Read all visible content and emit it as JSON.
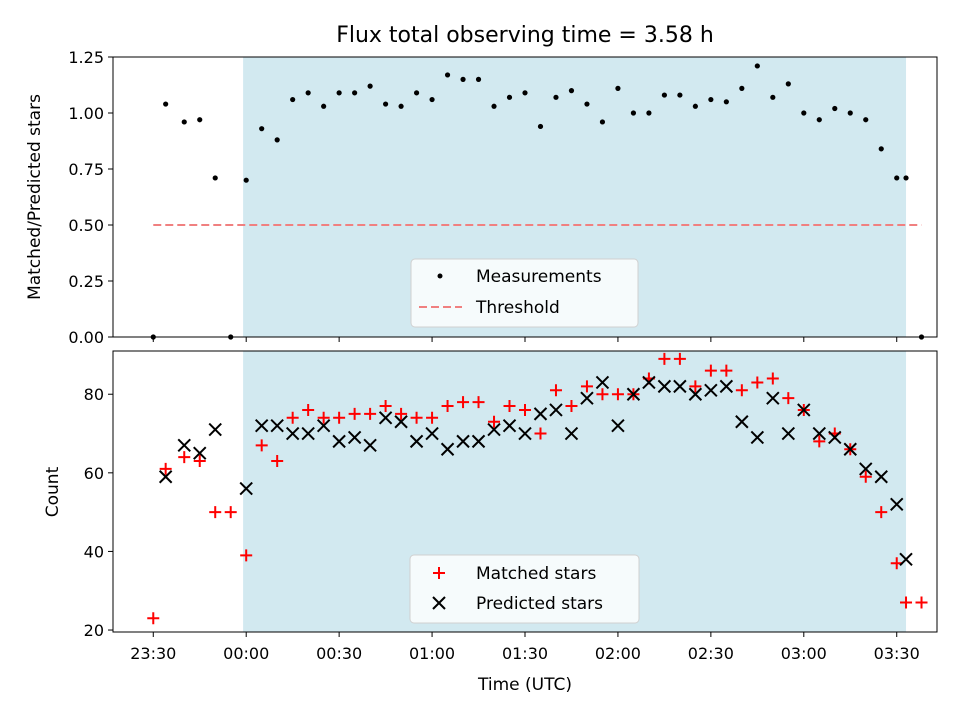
{
  "chart_data": [
    {
      "type": "scatter",
      "title": "Flux total observing time = 3.58 h",
      "xlabel": "",
      "ylabel": "Matched/Predicted stars",
      "xlim": [
        "23:17",
        "03:43"
      ],
      "ylim": [
        0,
        1.25
      ],
      "yticks": [
        0.0,
        0.25,
        0.5,
        0.75,
        1.0,
        1.25
      ],
      "ytick_labels": [
        "0.00",
        "0.25",
        "0.50",
        "0.75",
        "1.00",
        "1.25"
      ],
      "observing_window": {
        "start": "23:59",
        "end": "03:33",
        "color": "#d2e9f0"
      },
      "legend": {
        "placement": "bottom-center"
      },
      "threshold": {
        "name": "Threshold",
        "value": 0.5,
        "x_start": "23:30",
        "x_end": "03:38",
        "color": "#f08080",
        "style": "dashed"
      },
      "series": [
        {
          "name": "Measurements",
          "color": "#000000",
          "marker": "dot",
          "x": [
            "23:30",
            "23:34",
            "23:40",
            "23:45",
            "23:50",
            "23:55",
            "24:00",
            "24:05",
            "24:10",
            "24:15",
            "24:20",
            "24:25",
            "24:30",
            "24:35",
            "24:40",
            "24:45",
            "24:50",
            "24:55",
            "25:00",
            "25:05",
            "25:10",
            "25:15",
            "25:20",
            "25:25",
            "25:30",
            "25:35",
            "25:40",
            "25:45",
            "25:50",
            "25:55",
            "26:00",
            "26:05",
            "26:10",
            "26:15",
            "26:20",
            "26:25",
            "26:30",
            "26:35",
            "26:40",
            "26:45",
            "26:50",
            "26:55",
            "27:00",
            "27:05",
            "27:10",
            "27:15",
            "27:20",
            "27:25",
            "27:30",
            "27:33",
            "27:38"
          ],
          "y": [
            0.0,
            1.04,
            0.96,
            0.97,
            0.71,
            0.0,
            0.7,
            0.93,
            0.88,
            1.06,
            1.09,
            1.03,
            1.09,
            1.09,
            1.12,
            1.04,
            1.03,
            1.09,
            1.06,
            1.17,
            1.15,
            1.15,
            1.03,
            1.07,
            1.09,
            0.94,
            1.07,
            1.1,
            1.04,
            0.96,
            1.11,
            1.0,
            1.0,
            1.08,
            1.08,
            1.03,
            1.06,
            1.05,
            1.11,
            1.21,
            1.07,
            1.13,
            1.0,
            0.97,
            1.02,
            1.0,
            0.97,
            0.84,
            0.71,
            0.71,
            0.0
          ]
        }
      ]
    },
    {
      "type": "scatter",
      "title": "",
      "xlabel": "Time (UTC)",
      "ylabel": "Count",
      "xlim": [
        "23:17",
        "03:43"
      ],
      "ylim": [
        19.5,
        91
      ],
      "xticks": [
        "23:30",
        "24:00",
        "24:30",
        "25:00",
        "25:30",
        "26:00",
        "26:30",
        "27:00",
        "27:30"
      ],
      "xtick_labels": [
        "23:30",
        "00:00",
        "00:30",
        "01:00",
        "01:30",
        "02:00",
        "02:30",
        "03:00",
        "03:30"
      ],
      "yticks": [
        20,
        40,
        60,
        80
      ],
      "ytick_labels": [
        "20",
        "40",
        "60",
        "80"
      ],
      "observing_window": {
        "start": "23:59",
        "end": "03:33",
        "color": "#d2e9f0"
      },
      "legend": {
        "placement": "bottom-center"
      },
      "series": [
        {
          "name": "Matched stars",
          "color": "#ff0000",
          "marker": "plus",
          "x": [
            "23:30",
            "23:34",
            "23:40",
            "23:45",
            "23:50",
            "23:55",
            "24:00",
            "24:05",
            "24:10",
            "24:15",
            "24:20",
            "24:25",
            "24:30",
            "24:35",
            "24:40",
            "24:45",
            "24:50",
            "24:55",
            "25:00",
            "25:05",
            "25:10",
            "25:15",
            "25:20",
            "25:25",
            "25:30",
            "25:35",
            "25:40",
            "25:45",
            "25:50",
            "25:55",
            "26:00",
            "26:05",
            "26:10",
            "26:15",
            "26:20",
            "26:25",
            "26:30",
            "26:35",
            "26:40",
            "26:45",
            "26:50",
            "26:55",
            "27:00",
            "27:05",
            "27:10",
            "27:15",
            "27:20",
            "27:25",
            "27:30",
            "27:33",
            "27:38"
          ],
          "y": [
            23,
            61,
            64,
            63,
            50,
            50,
            39,
            67,
            63,
            74,
            76,
            74,
            74,
            75,
            75,
            77,
            75,
            74,
            74,
            77,
            78,
            78,
            73,
            77,
            76,
            70,
            81,
            77,
            82,
            80,
            80,
            80,
            84,
            89,
            89,
            82,
            86,
            86,
            81,
            83,
            84,
            79,
            76,
            68,
            70,
            66,
            59,
            50,
            37,
            27,
            27
          ]
        },
        {
          "name": "Predicted stars",
          "color": "#000000",
          "marker": "x",
          "x": [
            "23:34",
            "23:40",
            "23:45",
            "23:50",
            "24:00",
            "24:05",
            "24:10",
            "24:15",
            "24:20",
            "24:25",
            "24:30",
            "24:35",
            "24:40",
            "24:45",
            "24:50",
            "24:55",
            "25:00",
            "25:05",
            "25:10",
            "25:15",
            "25:20",
            "25:25",
            "25:30",
            "25:35",
            "25:40",
            "25:45",
            "25:50",
            "25:55",
            "26:00",
            "26:05",
            "26:10",
            "26:15",
            "26:20",
            "26:25",
            "26:30",
            "26:35",
            "26:40",
            "26:45",
            "26:50",
            "26:55",
            "27:00",
            "27:05",
            "27:10",
            "27:15",
            "27:20",
            "27:25",
            "27:30",
            "27:33"
          ],
          "y": [
            59,
            67,
            65,
            71,
            56,
            72,
            72,
            70,
            70,
            72,
            68,
            69,
            67,
            74,
            73,
            68,
            70,
            66,
            68,
            68,
            71,
            72,
            70,
            75,
            76,
            70,
            79,
            83,
            72,
            80,
            83,
            82,
            82,
            80,
            81,
            82,
            73,
            69,
            79,
            70,
            76,
            70,
            69,
            66,
            61,
            59,
            52,
            38
          ]
        }
      ]
    }
  ]
}
